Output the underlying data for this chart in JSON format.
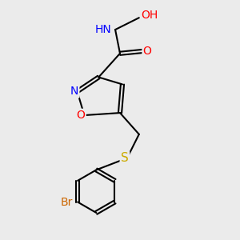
{
  "bg_color": "#ebebeb",
  "atom_colors": {
    "C": "#000000",
    "H": "#808080",
    "N": "#0000ff",
    "O": "#ff0000",
    "S": "#ccaa00",
    "Br": "#cc6600"
  },
  "bond_color": "#000000",
  "label_fontsize": 9,
  "figsize": [
    3.0,
    3.0
  ],
  "dpi": 100
}
